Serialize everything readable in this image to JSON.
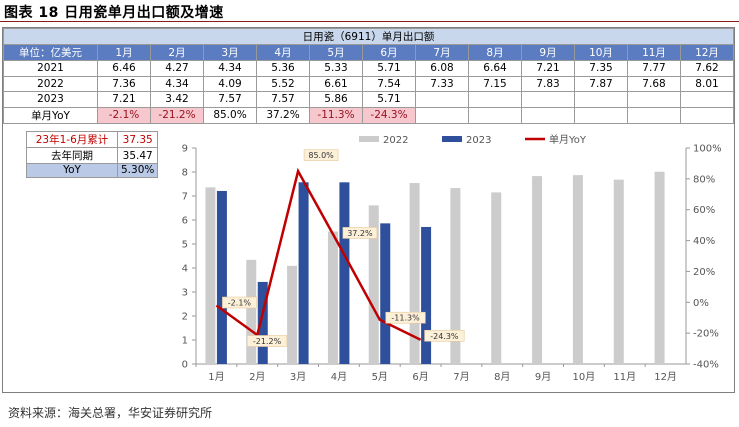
{
  "figure": {
    "title": "图表 18  日用瓷单月出口额及增速",
    "source": "资料来源：海关总署，华安证券研究所"
  },
  "table": {
    "title": "日用瓷（6911）单月出口额",
    "header": [
      "单位：亿美元",
      "1月",
      "2月",
      "3月",
      "4月",
      "5月",
      "6月",
      "7月",
      "8月",
      "9月",
      "10月",
      "11月",
      "12月"
    ],
    "rows": [
      [
        "2021",
        "6.46",
        "4.27",
        "4.34",
        "5.36",
        "5.33",
        "5.71",
        "6.08",
        "6.64",
        "7.21",
        "7.35",
        "7.77",
        "7.62"
      ],
      [
        "2022",
        "7.36",
        "4.34",
        "4.09",
        "5.52",
        "6.61",
        "7.54",
        "7.33",
        "7.15",
        "7.83",
        "7.87",
        "7.68",
        "8.01"
      ],
      [
        "2023",
        "7.21",
        "3.42",
        "7.57",
        "7.57",
        "5.86",
        "5.71",
        "",
        "",
        "",
        "",
        "",
        ""
      ],
      [
        "单月YoY",
        "-2.1%",
        "-21.2%",
        "85.0%",
        "37.2%",
        "-11.3%",
        "-24.3%",
        "",
        "",
        "",
        "",
        "",
        ""
      ]
    ]
  },
  "summary": {
    "rows": [
      [
        "23年1-6月累计",
        "37.35"
      ],
      [
        "去年同期",
        "35.47"
      ],
      [
        "YoY",
        "5.30%"
      ]
    ]
  },
  "colors": {
    "bar2022": "#cccccc",
    "bar2023": "#2e4f9b",
    "yoy_line": "#c00000",
    "label_box": "#fdf0d8"
  },
  "chart_data": {
    "type": "bar",
    "categories": [
      "1月",
      "2月",
      "3月",
      "4月",
      "5月",
      "6月",
      "7月",
      "8月",
      "9月",
      "10月",
      "11月",
      "12月"
    ],
    "series": [
      {
        "name": "2022",
        "kind": "bar",
        "axis": "left",
        "values": [
          7.36,
          4.34,
          4.09,
          5.52,
          6.61,
          7.54,
          7.33,
          7.15,
          7.83,
          7.87,
          7.68,
          8.01
        ]
      },
      {
        "name": "2023",
        "kind": "bar",
        "axis": "left",
        "values": [
          7.21,
          3.42,
          7.57,
          7.57,
          5.86,
          5.71,
          null,
          null,
          null,
          null,
          null,
          null
        ]
      },
      {
        "name": "单月YoY",
        "kind": "line",
        "axis": "right",
        "values": [
          -2.1,
          -21.2,
          85.0,
          37.2,
          -11.3,
          -24.3,
          null,
          null,
          null,
          null,
          null,
          null
        ],
        "labels": [
          "-2.1%",
          "-21.2%",
          "85.0%",
          "37.2%",
          "-11.3%",
          "-24.3%"
        ]
      }
    ],
    "ylim_left": [
      0,
      9
    ],
    "yticks_left": [
      0,
      1,
      2,
      3,
      4,
      5,
      6,
      7,
      8,
      9
    ],
    "ylim_right": [
      -40,
      100
    ],
    "yticks_right": [
      -40,
      -20,
      0,
      20,
      40,
      60,
      80,
      100
    ],
    "yticks_right_labels": [
      "-40%",
      "-20%",
      "0%",
      "20%",
      "40%",
      "60%",
      "80%",
      "100%"
    ],
    "grid": false,
    "legend": "top-center"
  }
}
